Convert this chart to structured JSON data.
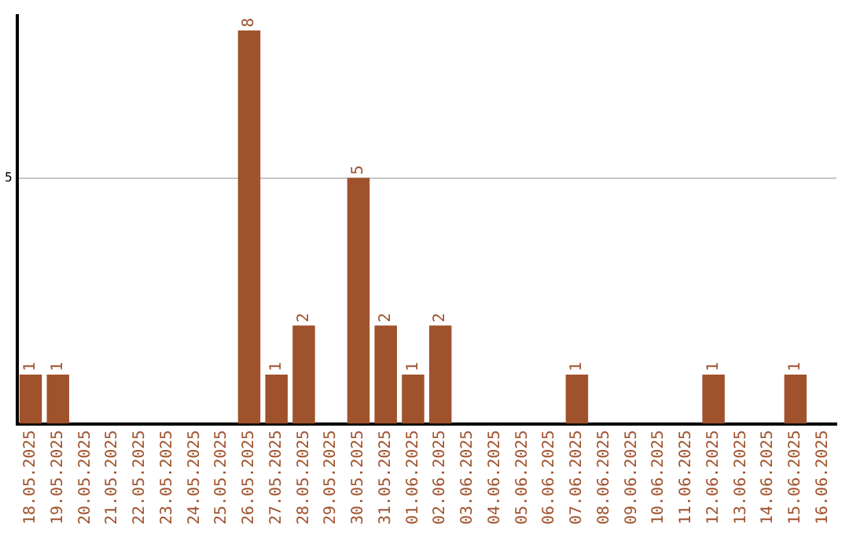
{
  "chart_data": {
    "type": "bar",
    "categories": [
      "18.05.2025",
      "19.05.2025",
      "20.05.2025",
      "21.05.2025",
      "22.05.2025",
      "23.05.2025",
      "24.05.2025",
      "25.05.2025",
      "26.05.2025",
      "27.05.2025",
      "28.05.2025",
      "29.05.2025",
      "30.05.2025",
      "31.05.2025",
      "01.06.2025",
      "02.06.2025",
      "03.06.2025",
      "04.06.2025",
      "05.06.2025",
      "06.06.2025",
      "07.06.2025",
      "08.06.2025",
      "09.06.2025",
      "10.06.2025",
      "11.06.2025",
      "12.06.2025",
      "13.06.2025",
      "14.06.2025",
      "15.06.2025",
      "16.06.2025"
    ],
    "values": [
      1,
      1,
      0,
      0,
      0,
      0,
      0,
      0,
      8,
      1,
      2,
      0,
      5,
      2,
      1,
      2,
      0,
      0,
      0,
      0,
      1,
      0,
      0,
      0,
      0,
      1,
      0,
      0,
      1,
      0
    ],
    "value_labels": [
      "1",
      "1",
      null,
      null,
      null,
      null,
      null,
      null,
      "8",
      "1",
      "2",
      null,
      "5",
      "2",
      "1",
      "2",
      null,
      null,
      null,
      null,
      "1",
      null,
      null,
      null,
      null,
      "1",
      null,
      null,
      "1",
      null
    ],
    "color": "#a0522d",
    "ylim": [
      0,
      8.3
    ],
    "yticks": [
      5
    ],
    "grid": "y",
    "legend": false
  }
}
